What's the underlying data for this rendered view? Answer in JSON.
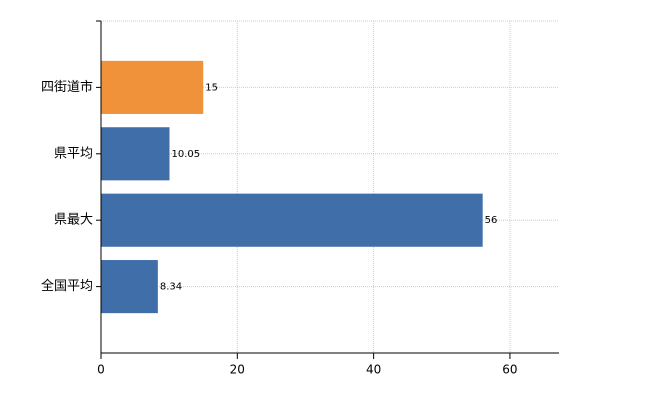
{
  "chart_data": {
    "type": "bar",
    "orientation": "horizontal",
    "categories": [
      "四街道市",
      "県平均",
      "県最大",
      "全国平均"
    ],
    "values": [
      15,
      10.05,
      56,
      8.34
    ],
    "colors": [
      "#f0923a",
      "#3f6ea9",
      "#3f6ea9",
      "#3f6ea9"
    ],
    "xlim": [
      0,
      67.2
    ],
    "xticks": [
      0,
      20,
      40,
      60
    ],
    "grid": true
  }
}
